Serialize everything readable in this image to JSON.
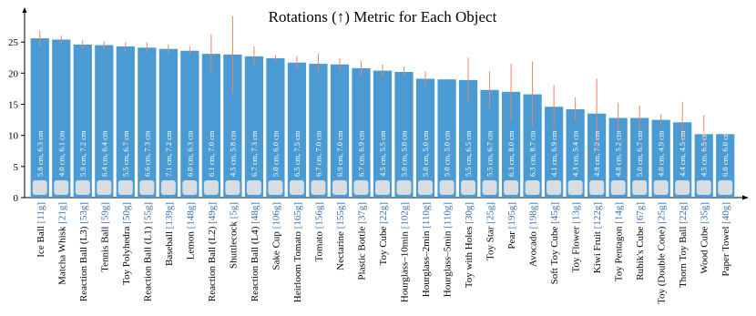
{
  "chart_data": {
    "type": "bar",
    "title": "Rotations (↑) Metric for Each Object",
    "categories": [
      "Ice Ball",
      "Matcha Whisk",
      "Reaction Ball (L3)",
      "Tennis Ball",
      "Toy Polyhedra",
      "Reaction Ball (L1)",
      "Baseball",
      "Lemon",
      "Reaction Ball (L2)",
      "Shuttlecock",
      "Reaction Ball (L4)",
      "Sake Cup",
      "Heirloom Tomato",
      "Tomato",
      "Nectarine",
      "Plastic Bottle",
      "Toy Cube",
      "Hourglass–10min",
      "Hourglass–2min",
      "Hourglass–5min",
      "Toy with Holes",
      "Toy Star",
      "Pear",
      "Avocado",
      "Soft Toy Cube",
      "Toy Flower",
      "Kiwi Fruit",
      "Toy Pentagon",
      "Rubik's Cube",
      "Toy (Double Cone)",
      "Thorn Toy Ball",
      "Wood Cube",
      "Paper Towel"
    ],
    "weights": [
      "[11g]",
      "[21g]",
      "[53g]",
      "[59g]",
      "[50g]",
      "[55g]",
      "[139g]",
      "[148g]",
      "[49g]",
      "[5g]",
      "[48g]",
      "[106g]",
      "[165g]",
      "[156g]",
      "[155g]",
      "[37g]",
      "[22g]",
      "[102g]",
      "[110g]",
      "[110g]",
      "[30g]",
      "[25g]",
      "[195g]",
      "[198g]",
      "[45g]",
      "[13g]",
      "[122g]",
      "[14g]",
      "[67g]",
      "[25g]",
      "[22g]",
      "[35g]",
      "[40g]"
    ],
    "dimensions": [
      "5.8 cm, 6.3 cm",
      "4.0 cm, 6.1 cm",
      "5.9 cm, 7.2 cm",
      "6.4 cm, 6.4 cm",
      "5.5 cm, 6.7 cm",
      "6.6 cm, 7.3 cm",
      "7.1 cm, 7.2 cm",
      "6.0 cm, 6.3 cm",
      "6.1 cm, 7.0 cm",
      "4.5 cm, 5.8 cm",
      "6.7 cm, 7.3 cm",
      "5.0 cm, 6.0 cm",
      "6.5 cm, 7.5 cm",
      "6.7 cm, 7.0 cm",
      "6.9 cm, 7.0 cm",
      "6.7 cm, 6.9 cm",
      "4.5 cm, 5.5 cm",
      "5.0 cm, 5.0 cm",
      "5.0 cm, 5.0 cm",
      "5.0 cm, 5.0 cm",
      "5.5 cm, 6.5 cm",
      "5.5 cm, 6.7 cm",
      "6.3 cm, 8.0 cm",
      "6.3 cm, 8.7 cm",
      "4.1 cm, 6.9 cm",
      "4.3 cm, 5.4 cm",
      "4.9 cm, 7.2 cm",
      "4.8 cm, 5.2 cm",
      "5.0 cm, 6.7 cm",
      "4.0 cm, 4.9 cm",
      "4.4 cm, 4.5 cm",
      "4.5 cm, 6.5 cm",
      "6.0 cm, 6.0 cm"
    ],
    "values": [
      25.6,
      25.4,
      24.6,
      24.5,
      24.3,
      24.1,
      23.9,
      23.6,
      23.1,
      23.0,
      22.7,
      22.4,
      21.7,
      21.5,
      21.4,
      20.8,
      20.4,
      20.2,
      19.1,
      19.0,
      18.9,
      17.3,
      17.0,
      16.6,
      14.6,
      14.2,
      13.5,
      12.8,
      12.8,
      12.5,
      12.1,
      10.2,
      10.2
    ],
    "errors": [
      1.2,
      0.6,
      0.7,
      0.6,
      0.7,
      0.8,
      0.7,
      0.7,
      3.1,
      6.2,
      1.6,
      0.5,
      1.0,
      1.6,
      1.0,
      1.2,
      1.0,
      0.8,
      1.2,
      0.1,
      3.6,
      3.0,
      4.5,
      5.3,
      3.5,
      1.9,
      5.6,
      2.4,
      2.0,
      0.9,
      3.3,
      3.0,
      0.1
    ],
    "color": "#4a9bd4",
    "error_color": "#e8846a",
    "weight_color": "#3a6fb0",
    "ylim": [
      0,
      30
    ],
    "yticks": [
      0,
      5,
      10,
      15,
      20,
      25
    ]
  }
}
